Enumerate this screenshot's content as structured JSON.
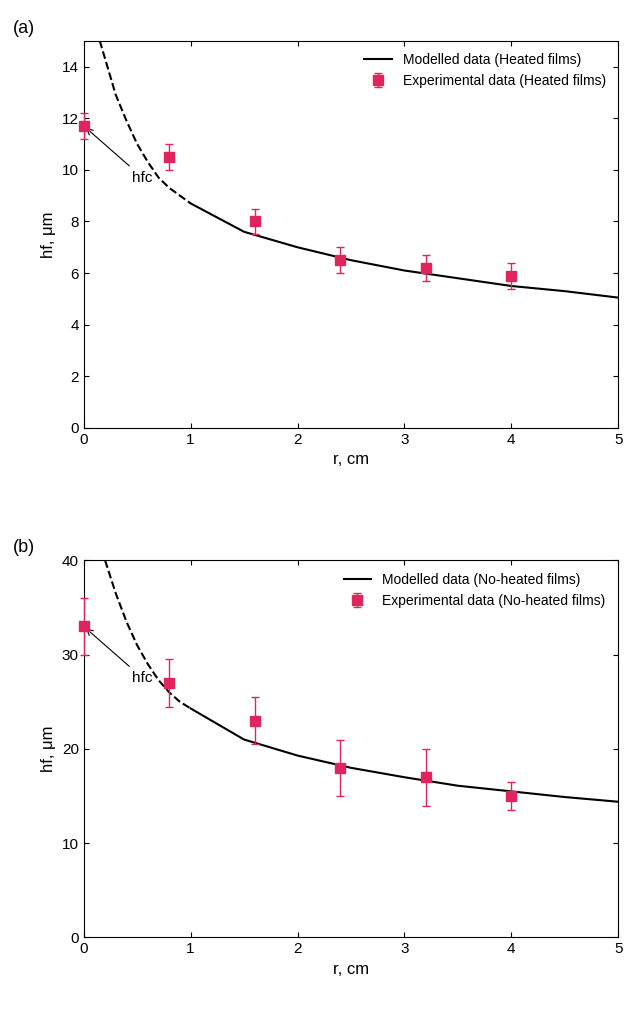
{
  "chart_data": [
    {
      "type": "scatter",
      "panel_label": "(a)",
      "x_label": "r, cm",
      "y_label": "hf, μm",
      "xlim": [
        0,
        5
      ],
      "xticks": [
        0,
        1,
        2,
        3,
        4,
        5
      ],
      "ylim": [
        0,
        15
      ],
      "yticks": [
        0,
        2,
        4,
        6,
        8,
        10,
        12,
        14
      ],
      "legend": "upper right",
      "series": [
        {
          "name": "Modelled data (Heated films)",
          "type": "line",
          "line_style": "solid",
          "color": "#000000",
          "x": [
            1.0,
            1.5,
            2.0,
            2.5,
            3.0,
            3.5,
            4.0,
            4.5,
            5.0
          ],
          "values": [
            8.7,
            7.6,
            7.0,
            6.5,
            6.1,
            5.8,
            5.5,
            5.3,
            5.05
          ]
        },
        {
          "type": "line",
          "line_style": "dashed",
          "color": "#000000",
          "x": [
            0.15,
            0.2,
            0.3,
            0.4,
            0.5,
            0.6,
            0.7,
            0.8,
            0.9,
            1.0
          ],
          "values": [
            15.0,
            14.3,
            12.9,
            11.9,
            11.0,
            10.3,
            9.7,
            9.3,
            9.0,
            8.7
          ]
        },
        {
          "name": "Experimental data (Heated films)",
          "type": "scatter",
          "marker": "s",
          "color": "#e0245e",
          "x": [
            0,
            0.8,
            1.6,
            2.4,
            3.2,
            4.0
          ],
          "values": [
            11.7,
            10.5,
            8.0,
            6.5,
            6.2,
            5.9
          ],
          "errors": [
            0.5,
            0.5,
            0.5,
            0.5,
            0.5,
            0.5
          ]
        }
      ],
      "annotations": [
        {
          "text": "hfc",
          "x": 0.0,
          "y": 11.7
        }
      ]
    },
    {
      "type": "scatter",
      "panel_label": "(b)",
      "x_label": "r, cm",
      "y_label": "hf, μm",
      "xlim": [
        0,
        5
      ],
      "xticks": [
        0,
        1,
        2,
        3,
        4,
        5
      ],
      "ylim": [
        0,
        40
      ],
      "yticks": [
        0,
        10,
        20,
        30,
        40
      ],
      "legend": "upper right",
      "series": [
        {
          "name": "Modelled data (No-heated films)",
          "type": "line",
          "line_style": "solid",
          "color": "#000000",
          "x": [
            1.0,
            1.5,
            2.0,
            2.5,
            3.0,
            3.5,
            4.0,
            4.5,
            5.0
          ],
          "values": [
            24.3,
            21.0,
            19.3,
            18.0,
            17.0,
            16.1,
            15.5,
            14.9,
            14.4
          ]
        },
        {
          "type": "line",
          "line_style": "dashed",
          "color": "#000000",
          "x": [
            0.2,
            0.3,
            0.4,
            0.5,
            0.6,
            0.7,
            0.8,
            0.9,
            1.0
          ],
          "values": [
            40.0,
            36.5,
            33.5,
            31.0,
            29.0,
            27.3,
            26.0,
            25.0,
            24.3
          ]
        },
        {
          "name": "Experimental data (No-heated films)",
          "type": "scatter",
          "marker": "s",
          "color": "#e0245e",
          "x": [
            0,
            0.8,
            1.6,
            2.4,
            3.2,
            4.0
          ],
          "values": [
            33.0,
            27.0,
            23.0,
            18.0,
            17.0,
            15.0
          ],
          "errors": [
            3.0,
            2.5,
            2.5,
            3.0,
            3.0,
            1.5
          ]
        }
      ],
      "annotations": [
        {
          "text": "hfc",
          "x": 0.0,
          "y": 33.0
        }
      ]
    }
  ]
}
